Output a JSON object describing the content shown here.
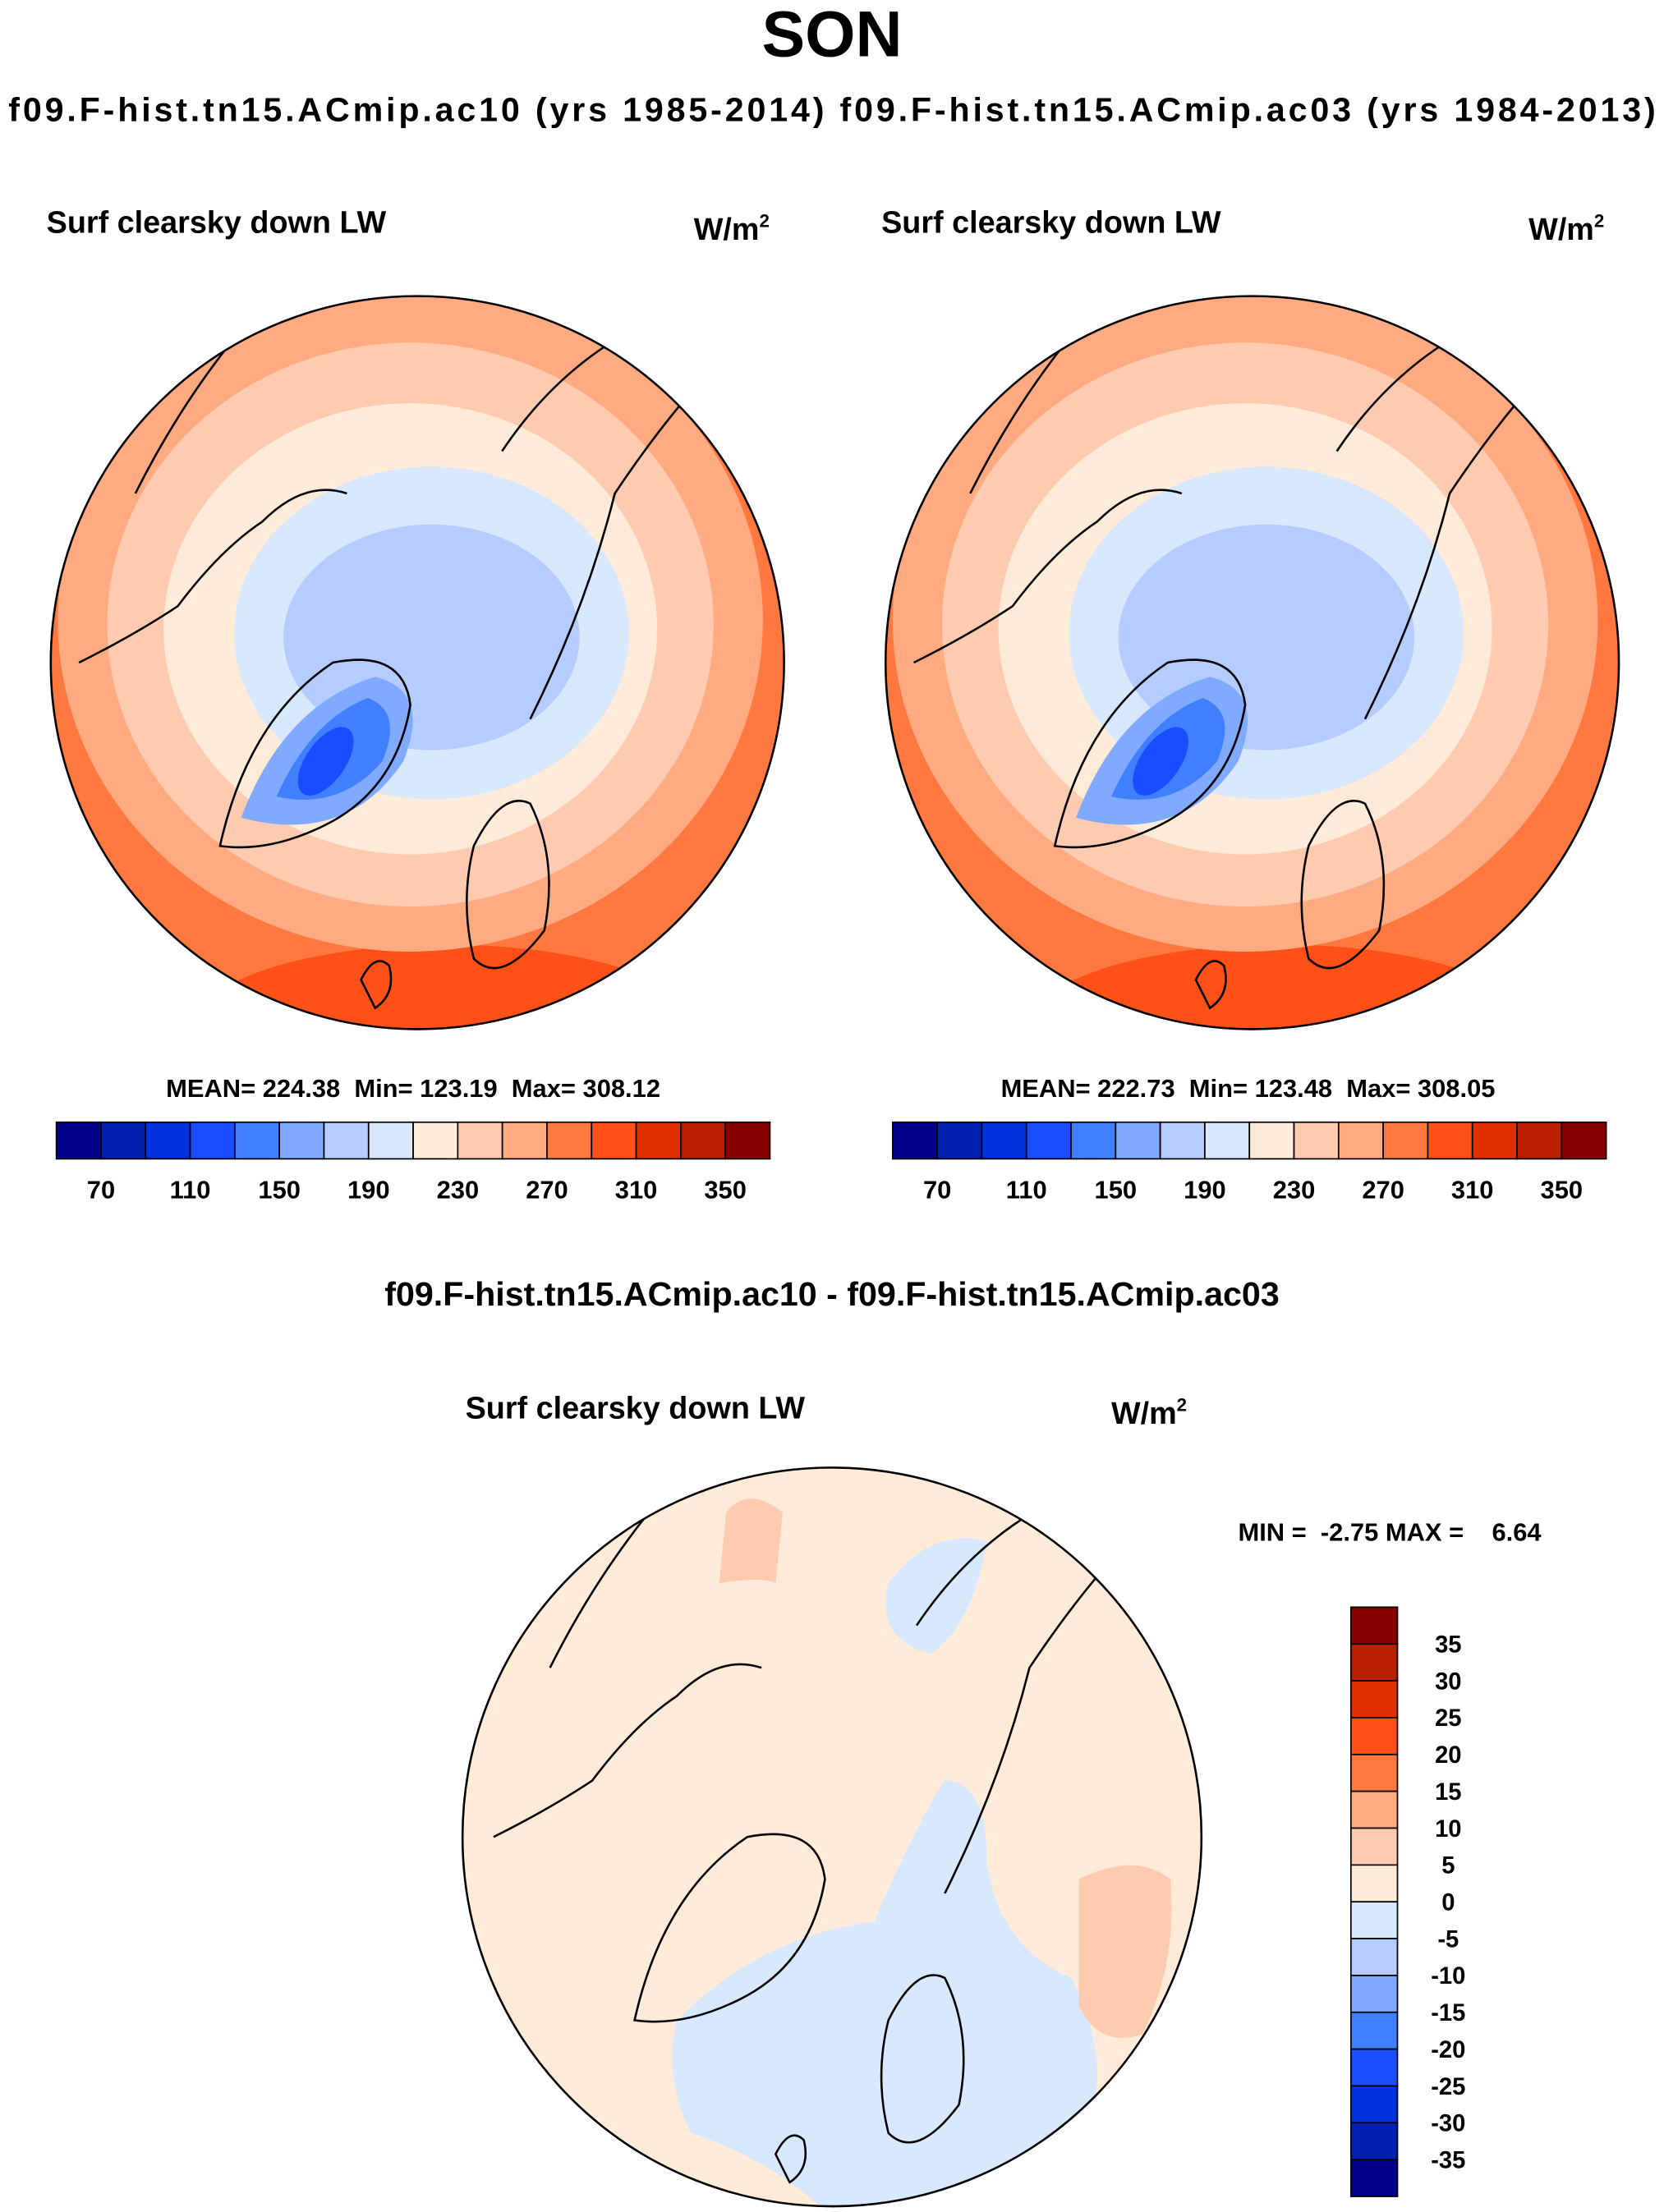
{
  "chart_data": {
    "type": "heatmap",
    "title": "SON",
    "subtitle": "f09.F-hist.tn15.ACmip.ac10 (yrs 1985-2014) f09.F-hist.tn15.ACmip.ac03 (yrs 1984-2013)",
    "colors": [
      "#000088",
      "#0020b0",
      "#0033dd",
      "#1a4dff",
      "#4080ff",
      "#80aaff",
      "#b4ccff",
      "#d8e8ff",
      "#ffebd8",
      "#ffcbb0",
      "#ffaa80",
      "#ff7840",
      "#ff5018",
      "#e03000",
      "#b82000",
      "#880000"
    ],
    "panels": [
      {
        "name": "ac10",
        "variable": "Surf clearsky down LW",
        "units": "W/m",
        "units_sup": "2",
        "stats": "MEAN= 224.38  Min= 123.19  Max= 308.12",
        "mean": 224.38,
        "min": 123.19,
        "max": 308.12,
        "levels": [
          70,
          90,
          110,
          130,
          150,
          170,
          190,
          210,
          230,
          250,
          270,
          290,
          310,
          330,
          350
        ],
        "tick_labels": [
          "70",
          "110",
          "150",
          "190",
          "230",
          "270",
          "310",
          "350"
        ]
      },
      {
        "name": "ac03",
        "variable": "Surf clearsky down LW",
        "units": "W/m",
        "units_sup": "2",
        "stats": "MEAN= 222.73  Min= 123.48  Max= 308.05",
        "mean": 222.73,
        "min": 123.48,
        "max": 308.05,
        "levels": [
          70,
          90,
          110,
          130,
          150,
          170,
          190,
          210,
          230,
          250,
          270,
          290,
          310,
          330,
          350
        ],
        "tick_labels": [
          "70",
          "110",
          "150",
          "190",
          "230",
          "270",
          "310",
          "350"
        ]
      }
    ],
    "difference": {
      "title": "f09.F-hist.tn15.ACmip.ac10 - f09.F-hist.tn15.ACmip.ac03",
      "variable": "Surf clearsky down LW",
      "units": "W/m",
      "units_sup": "2",
      "stats": "MIN =  -2.75 MAX =    6.64",
      "min": -2.75,
      "max": 6.64,
      "levels": [
        -35,
        -30,
        -25,
        -20,
        -15,
        -10,
        -5,
        0,
        5,
        10,
        15,
        20,
        25,
        30,
        35
      ],
      "tick_labels": [
        "-35",
        "-30",
        "-25",
        "-20",
        "-15",
        "-10",
        "-5",
        "0",
        "5",
        "10",
        "15",
        "20",
        "25",
        "30",
        "35"
      ]
    }
  }
}
